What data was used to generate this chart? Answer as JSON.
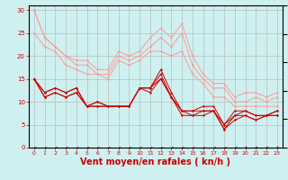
{
  "background_color": "#cff0f0",
  "grid_color": "#b0b0b0",
  "xlabel": "Vent moyen/en rafales ( kn/h )",
  "xlabel_color": "#cc0000",
  "xlabel_fontsize": 7,
  "xlim": [
    -0.5,
    23.5
  ],
  "ylim": [
    0,
    31
  ],
  "yticks": [
    0,
    5,
    10,
    15,
    20,
    25,
    30
  ],
  "xticks": [
    0,
    1,
    2,
    3,
    4,
    5,
    6,
    7,
    8,
    9,
    10,
    11,
    12,
    13,
    14,
    15,
    16,
    17,
    18,
    19,
    20,
    21,
    22,
    23
  ],
  "series_light": [
    [
      30,
      24,
      22,
      20,
      19,
      19,
      17,
      17,
      21,
      20,
      21,
      24,
      26,
      24,
      27,
      20,
      16,
      14,
      14,
      11,
      12,
      12,
      11,
      12
    ],
    [
      30,
      24,
      22,
      20,
      18,
      18,
      16,
      16,
      20,
      19,
      20,
      22,
      24,
      22,
      25,
      18,
      15,
      13,
      13,
      10,
      10,
      11,
      10,
      11
    ],
    [
      25,
      22,
      21,
      18,
      17,
      16,
      16,
      15,
      19,
      18,
      19,
      21,
      21,
      20,
      21,
      16,
      14,
      11,
      11,
      9,
      9,
      9,
      9,
      9
    ]
  ],
  "series_dark": [
    [
      15,
      12,
      13,
      12,
      13,
      9,
      10,
      9,
      9,
      9,
      13,
      13,
      17,
      12,
      8,
      8,
      9,
      9,
      5,
      8,
      8,
      7,
      7,
      8
    ],
    [
      15,
      12,
      13,
      12,
      13,
      9,
      10,
      9,
      9,
      9,
      13,
      13,
      16,
      11,
      8,
      8,
      8,
      8,
      5,
      7,
      8,
      7,
      7,
      8
    ],
    [
      15,
      11,
      12,
      11,
      12,
      9,
      9,
      9,
      9,
      9,
      13,
      13,
      15,
      11,
      8,
      7,
      8,
      8,
      4,
      7,
      7,
      6,
      7,
      7
    ],
    [
      15,
      11,
      12,
      11,
      12,
      9,
      9,
      9,
      9,
      9,
      13,
      12,
      15,
      11,
      7,
      7,
      7,
      8,
      4,
      6,
      7,
      6,
      7,
      7
    ]
  ],
  "light_color": "#ff9999",
  "dark_color": "#cc0000",
  "marker_size": 1.5,
  "linewidth": 0.7,
  "tick_fontsize": 4.5
}
